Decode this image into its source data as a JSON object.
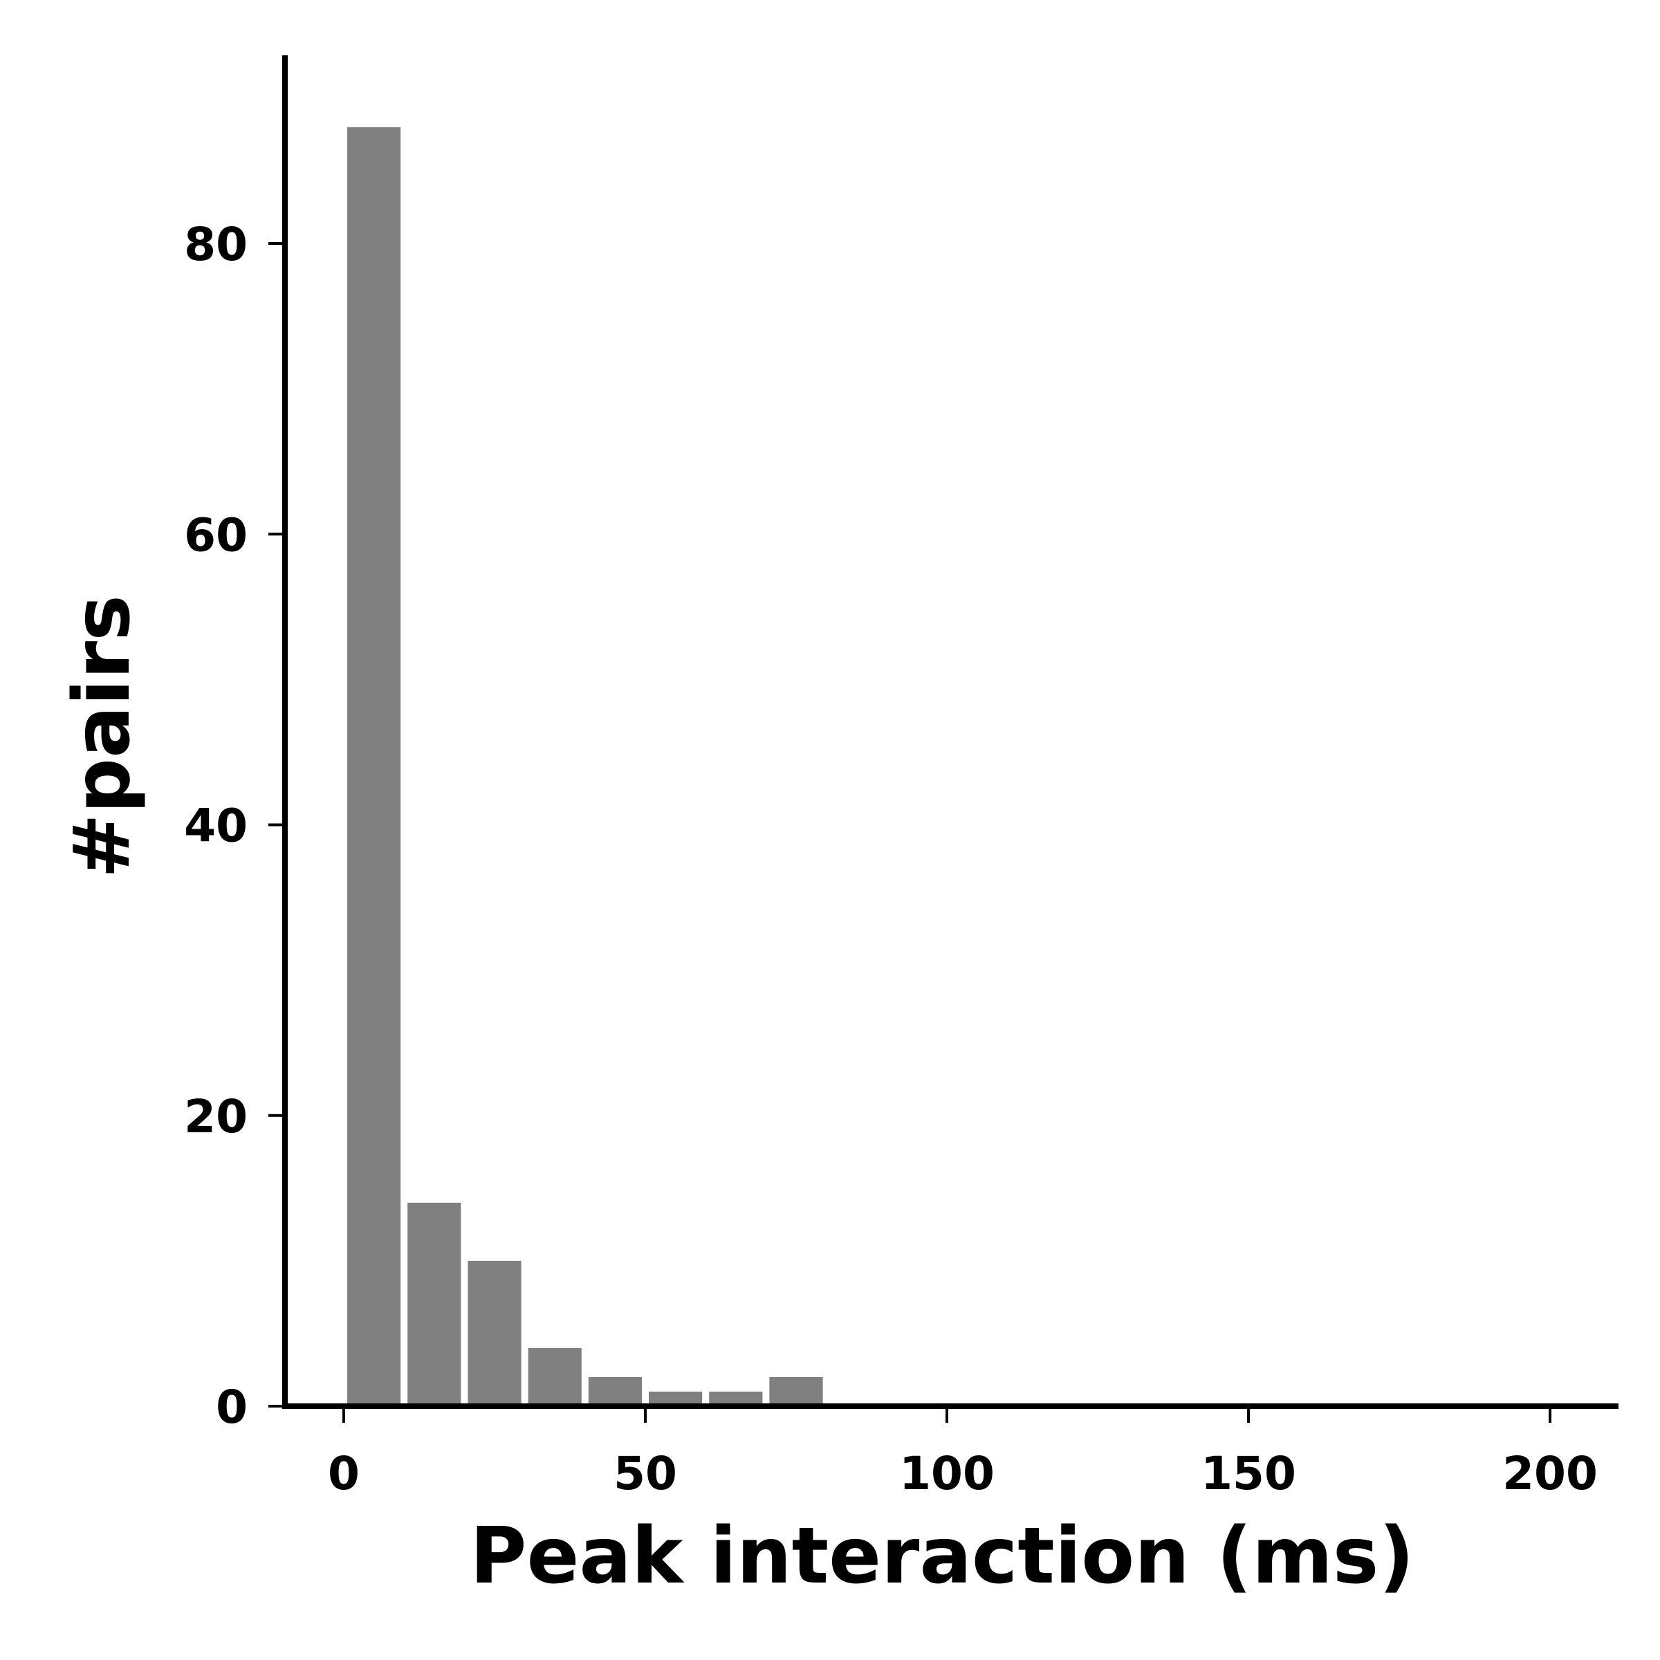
{
  "chart_data": {
    "type": "bar",
    "title": "",
    "xlabel": "Peak interaction (ms)",
    "ylabel": "#pairs",
    "bin_edges": [
      0,
      10,
      20,
      30,
      40,
      50,
      60,
      70,
      80
    ],
    "values": [
      88,
      14,
      10,
      4,
      2,
      1,
      1,
      2
    ],
    "xlim": [
      -10,
      210
    ],
    "ylim": [
      0,
      93
    ],
    "xticks": [
      0,
      50,
      100,
      150,
      200
    ],
    "yticks": [
      0,
      20,
      40,
      60,
      80
    ],
    "grid": false,
    "legend": "none",
    "bar_color": "#808080",
    "axis_color": "#000000"
  }
}
